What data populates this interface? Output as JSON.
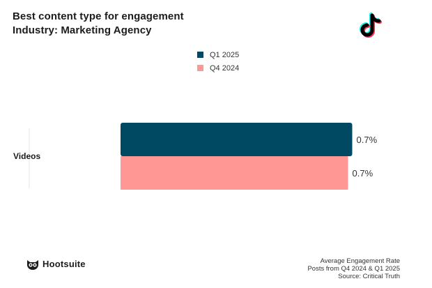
{
  "header": {
    "title": "Best content type for engagement",
    "subtitle": "Industry: Marketing Agency",
    "platform_icon": "tiktok-icon"
  },
  "chart_data": {
    "type": "bar",
    "orientation": "horizontal",
    "categories": [
      "Videos"
    ],
    "series": [
      {
        "name": "Q1 2025",
        "values": [
          0.7
        ],
        "labels": [
          "0.7%"
        ],
        "color": "#004963"
      },
      {
        "name": "Q4 2024",
        "values": [
          0.7
        ],
        "labels": [
          "0.7%"
        ],
        "color": "#ff9895"
      }
    ],
    "title": "Best content type for engagement",
    "subtitle": "Industry: Marketing Agency",
    "xlabel": "",
    "ylabel": "",
    "legend_position": "top-center",
    "grid": false
  },
  "footer": {
    "brand": "Hootsuite",
    "brand_icon": "owl-logo-icon",
    "notes": [
      "Average Engagement Rate",
      "Posts from Q4 2024 & Q1 2025",
      "Source: Critical Truth"
    ]
  }
}
